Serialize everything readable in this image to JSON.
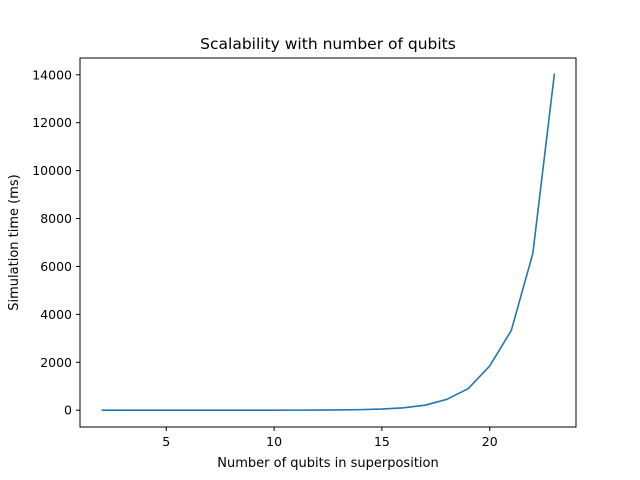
{
  "chart_data": {
    "type": "line",
    "title": "Scalability with number of qubits",
    "xlabel": "Number of qubits in superposition",
    "ylabel": "Simulation time (ms)",
    "xlim": [
      1,
      24
    ],
    "ylim": [
      -700,
      14700
    ],
    "xticks": [
      5,
      10,
      15,
      20
    ],
    "yticks": [
      0,
      2000,
      4000,
      6000,
      8000,
      10000,
      12000,
      14000
    ],
    "grid": false,
    "legend": "none",
    "series": [
      {
        "color": "#1f77b4",
        "x": [
          2,
          3,
          4,
          5,
          6,
          7,
          8,
          9,
          10,
          11,
          12,
          13,
          14,
          15,
          16,
          17,
          18,
          19,
          20,
          21,
          22,
          23
        ],
        "y": [
          0,
          0,
          0,
          0,
          0,
          0,
          0,
          1,
          2,
          4,
          7,
          13,
          25,
          50,
          100,
          210,
          450,
          900,
          1850,
          3330,
          6550,
          14050
        ]
      }
    ]
  }
}
